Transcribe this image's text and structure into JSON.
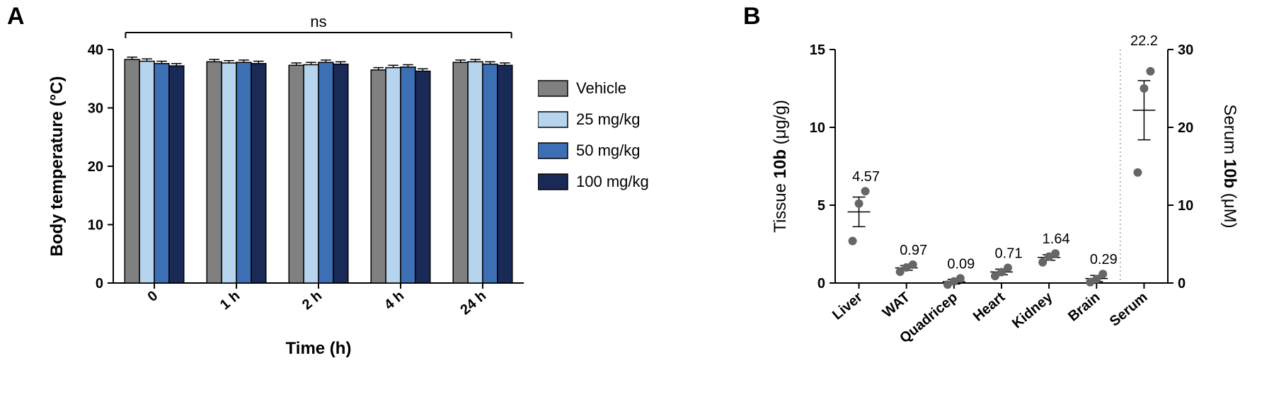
{
  "panelA": {
    "label": "A",
    "label_fontsize": 34,
    "type": "grouped-bar",
    "title_ns": "ns",
    "title_ns_fontsize": 22,
    "ylabel": "Body temperature (°C)",
    "xlabel": "Time (h)",
    "axis_label_fontsize": 24,
    "tick_fontsize": 20,
    "ylim": [
      0,
      40
    ],
    "ytick_step": 10,
    "yticks": [
      0,
      10,
      20,
      30,
      40
    ],
    "categories": [
      "0",
      "1 h",
      "2 h",
      "4 h",
      "24 h"
    ],
    "series": [
      {
        "name": "Vehicle",
        "color": "#808080"
      },
      {
        "name": "25 mg/kg",
        "color": "#b6d4ed"
      },
      {
        "name": "50 mg/kg",
        "color": "#3d6fb5"
      },
      {
        "name": "100 mg/kg",
        "color": "#1a2a57"
      }
    ],
    "values": [
      [
        38.3,
        38.0,
        37.6,
        37.2
      ],
      [
        37.9,
        37.7,
        37.8,
        37.6
      ],
      [
        37.3,
        37.4,
        37.8,
        37.5
      ],
      [
        36.5,
        36.9,
        37.0,
        36.3
      ],
      [
        37.8,
        37.9,
        37.5,
        37.3
      ]
    ],
    "errors": [
      [
        0.4,
        0.4,
        0.4,
        0.4
      ],
      [
        0.4,
        0.4,
        0.4,
        0.4
      ],
      [
        0.4,
        0.4,
        0.4,
        0.4
      ],
      [
        0.4,
        0.4,
        0.4,
        0.4
      ],
      [
        0.4,
        0.4,
        0.4,
        0.4
      ]
    ],
    "bar_width": 0.18,
    "group_gap": 0.28,
    "legend": {
      "items": [
        "Vehicle",
        "25 mg/kg",
        "50 mg/kg",
        "100 mg/kg"
      ],
      "fontsize": 22
    }
  },
  "panelB": {
    "label": "B",
    "label_fontsize": 34,
    "type": "scatter-meansem-dualaxis",
    "ylabel_left_prefix": "Tissue ",
    "ylabel_left_bold": "10b",
    "ylabel_left_suffix": " (μg/g)",
    "ylabel_right_prefix": "Serum ",
    "ylabel_right_bold": "10b",
    "ylabel_right_suffix": " (μM)",
    "axis_label_fontsize": 24,
    "tick_fontsize": 20,
    "value_label_fontsize": 20,
    "left_ylim": [
      0,
      15
    ],
    "left_yticks": [
      0,
      5,
      10,
      15
    ],
    "right_ylim": [
      0,
      30
    ],
    "right_yticks": [
      0,
      10,
      20,
      30
    ],
    "divider_after_index": 5,
    "categories": [
      "Liver",
      "WAT",
      "Quadricep",
      "Heart",
      "Kidney",
      "Brain",
      "Serum"
    ],
    "point_color": "#666666",
    "point_radius": 6,
    "groups": [
      {
        "axis": "left",
        "mean": 4.57,
        "sem": 0.95,
        "points": [
          2.7,
          5.1,
          5.9
        ],
        "label": "4.57"
      },
      {
        "axis": "left",
        "mean": 0.97,
        "sem": 0.15,
        "points": [
          0.72,
          1.0,
          1.18
        ],
        "label": "0.97"
      },
      {
        "axis": "left",
        "mean": 0.09,
        "sem": 0.15,
        "points": [
          -0.1,
          0.1,
          0.3
        ],
        "label": "0.09"
      },
      {
        "axis": "left",
        "mean": 0.71,
        "sem": 0.18,
        "points": [
          0.45,
          0.7,
          0.98
        ],
        "label": "0.71"
      },
      {
        "axis": "left",
        "mean": 1.64,
        "sem": 0.18,
        "points": [
          1.33,
          1.7,
          1.9
        ],
        "label": "1.64"
      },
      {
        "axis": "left",
        "mean": 0.29,
        "sem": 0.2,
        "points": [
          0.05,
          0.25,
          0.58
        ],
        "label": "0.29"
      },
      {
        "axis": "right",
        "mean": 22.2,
        "sem": 3.8,
        "points": [
          14.2,
          25.0,
          27.2
        ],
        "label": "22.2"
      }
    ]
  }
}
